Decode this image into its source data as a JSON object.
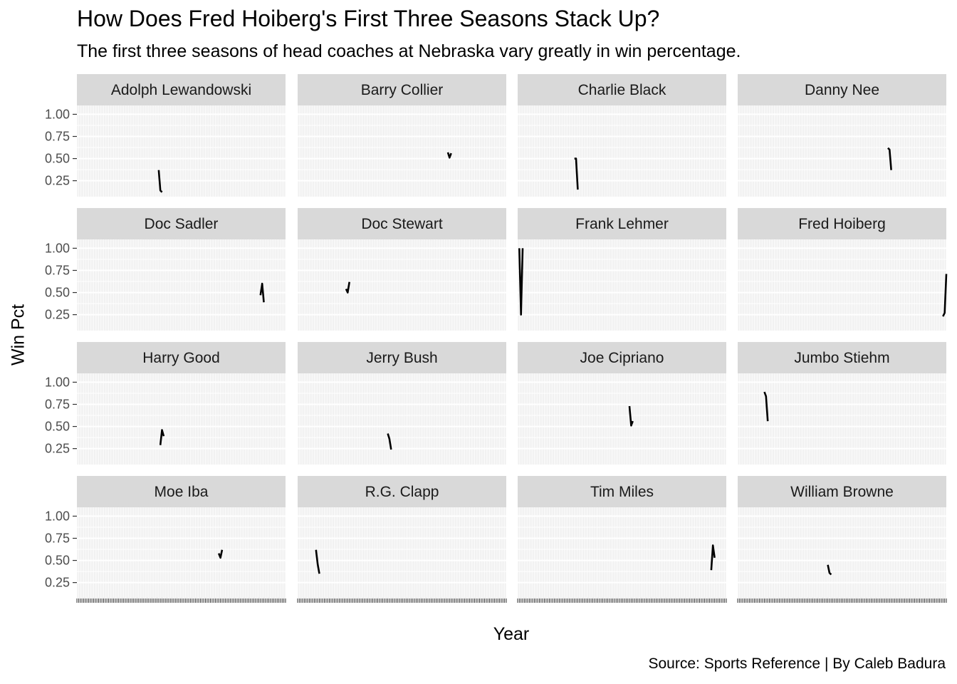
{
  "title": "How Does Fred Hoiberg's First Three Seasons Stack Up?",
  "subtitle": "The first three seasons of head coaches at Nebraska vary greatly in win percentage.",
  "caption": "Source: Sports Reference | By Caleb Badura",
  "colors": {
    "panel_bg": "#ebebeb",
    "grid": "#ffffff",
    "strip": "#d9d9d9",
    "line": "#000000"
  },
  "chart_data": {
    "type": "line",
    "facet": "coach",
    "facet_layout": {
      "rows": 4,
      "cols": 4
    },
    "xlabel": "Year",
    "ylabel": "Win Pct",
    "x_range": [
      1897,
      2022
    ],
    "ylim": [
      0.07,
      1.1
    ],
    "y_ticks": [
      0.25,
      0.5,
      0.75,
      1.0
    ],
    "y_tick_labels": [
      "0.25",
      "0.50",
      "0.75",
      "1.00"
    ],
    "grid": true,
    "panels": [
      {
        "name": "Adolph Lewandowski",
        "x": [
          1946,
          1947,
          1948
        ],
        "y": [
          0.37,
          0.14,
          0.12
        ]
      },
      {
        "name": "Barry Collier",
        "x": [
          1987,
          1988,
          1989
        ],
        "y": [
          0.57,
          0.51,
          0.56
        ]
      },
      {
        "name": "Charlie Black",
        "x": [
          1931,
          1932,
          1933
        ],
        "y": [
          0.5,
          0.5,
          0.15
        ]
      },
      {
        "name": "Danny Nee",
        "x": [
          1987,
          1988,
          1989
        ],
        "y": [
          0.62,
          0.6,
          0.37
        ]
      },
      {
        "name": "Doc Sadler",
        "x": [
          2007,
          2008,
          2009
        ],
        "y": [
          0.47,
          0.6,
          0.39
        ]
      },
      {
        "name": "Doc Stewart",
        "x": [
          1926,
          1927,
          1928
        ],
        "y": [
          0.54,
          0.5,
          0.62
        ]
      },
      {
        "name": "Frank Lehmer",
        "x": [
          1898,
          1899,
          1900
        ],
        "y": [
          1.0,
          0.25,
          1.0
        ]
      },
      {
        "name": "Fred Hoiberg",
        "x": [
          2020,
          2021,
          2022
        ],
        "y": [
          0.23,
          0.27,
          0.71
        ]
      },
      {
        "name": "Harry Good",
        "x": [
          1947,
          1948,
          1949
        ],
        "y": [
          0.29,
          0.46,
          0.39
        ]
      },
      {
        "name": "Jerry Bush",
        "x": [
          1951,
          1952,
          1953
        ],
        "y": [
          0.42,
          0.36,
          0.24
        ]
      },
      {
        "name": "Joe Cipriano",
        "x": [
          1964,
          1965,
          1966
        ],
        "y": [
          0.73,
          0.51,
          0.56
        ]
      },
      {
        "name": "Jumbo Stiehm",
        "x": [
          1913,
          1914,
          1915
        ],
        "y": [
          0.89,
          0.84,
          0.56
        ]
      },
      {
        "name": "Moe Iba",
        "x": [
          1982,
          1983,
          1984
        ],
        "y": [
          0.58,
          0.53,
          0.62
        ]
      },
      {
        "name": "R.G. Clapp",
        "x": [
          1908,
          1909,
          1910
        ],
        "y": [
          0.62,
          0.46,
          0.35
        ]
      },
      {
        "name": "Tim Miles",
        "x": [
          2013,
          2014,
          2015
        ],
        "y": [
          0.39,
          0.67,
          0.53
        ]
      },
      {
        "name": "William Browne",
        "x": [
          1951,
          1952,
          1953
        ],
        "y": [
          0.45,
          0.36,
          0.34
        ]
      }
    ]
  }
}
